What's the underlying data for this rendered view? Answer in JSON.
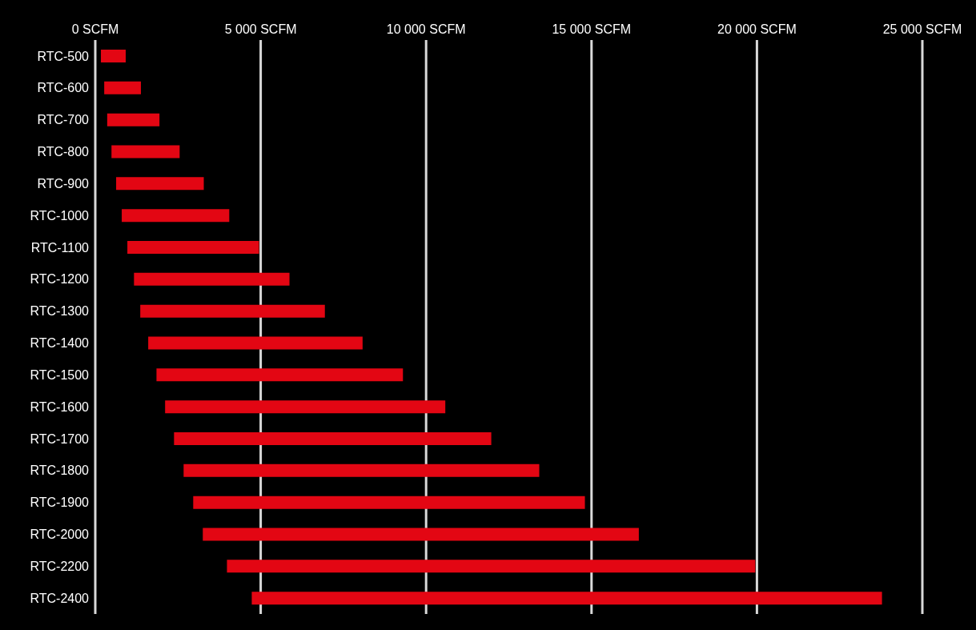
{
  "chart_data": {
    "type": "bar",
    "orientation": "horizontal",
    "categories": [
      "RTC-500",
      "RTC-600",
      "RTC-700",
      "RTC-800",
      "RTC-900",
      "RTC-1000",
      "RTC-1100",
      "RTC-1200",
      "RTC-1300",
      "RTC-1400",
      "RTC-1500",
      "RTC-1600",
      "RTC-1700",
      "RTC-1800",
      "RTC-1900",
      "RTC-2000",
      "RTC-2200",
      "RTC-2400"
    ],
    "base": [
      170,
      270,
      360,
      490,
      630,
      800,
      970,
      1170,
      1360,
      1600,
      1850,
      2110,
      2380,
      2670,
      2960,
      3250,
      3980,
      4730
    ],
    "values": [
      750,
      1110,
      1580,
      2060,
      2650,
      3250,
      3980,
      4700,
      5580,
      6480,
      7450,
      8470,
      9590,
      10750,
      11840,
      13180,
      15970,
      19050
    ],
    "color": "#e30613",
    "xlim": [
      0,
      25000
    ],
    "xticks": [
      {
        "value": 0,
        "label": "0 SCFM"
      },
      {
        "value": 5000,
        "label": "5 000 SCFM"
      },
      {
        "value": 10000,
        "label": "10 000 SCFM"
      },
      {
        "value": 15000,
        "label": "15 000 SCFM"
      },
      {
        "value": 20000,
        "label": "20 000 SCFM"
      },
      {
        "value": 25000,
        "label": "25 000 SCFM"
      }
    ],
    "grid": "x"
  }
}
